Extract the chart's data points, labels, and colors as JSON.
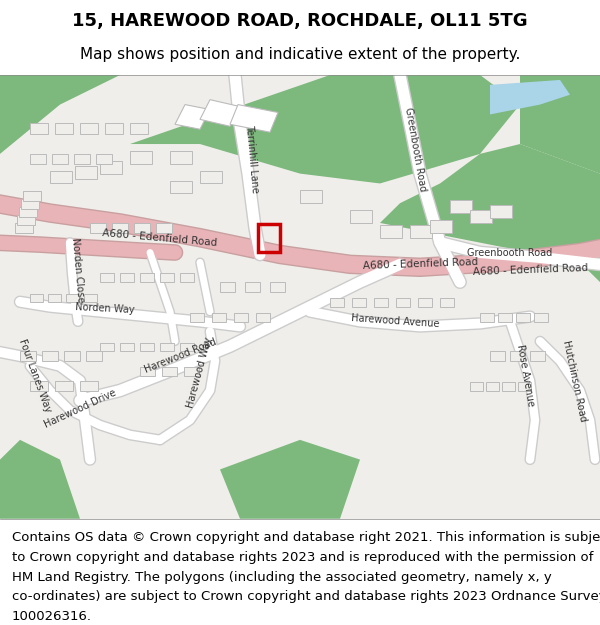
{
  "title": "15, HAREWOOD ROAD, ROCHDALE, OL11 5TG",
  "subtitle": "Map shows position and indicative extent of the property.",
  "footer_lines": [
    "Contains OS data © Crown copyright and database right 2021. This information is subject",
    "to Crown copyright and database rights 2023 and is reproduced with the permission of",
    "HM Land Registry. The polygons (including the associated geometry, namely x, y",
    "co-ordinates) are subject to Crown copyright and database rights 2023 Ordnance Survey",
    "100026316."
  ],
  "title_fontsize": 13,
  "subtitle_fontsize": 11,
  "footer_fontsize": 9.5,
  "road_color": "#ffffff",
  "road_edge_color": "#cccccc",
  "building_fill": "#f0eeea",
  "building_edge": "#bbbbbb",
  "green_color": "#7db87d",
  "water_color": "#aad4e8",
  "highlight_color": "#cc0000",
  "pink_road": "#e8b4b8",
  "pink_road_edge": "#c8a0a0",
  "map_bg": "#f0eeea"
}
